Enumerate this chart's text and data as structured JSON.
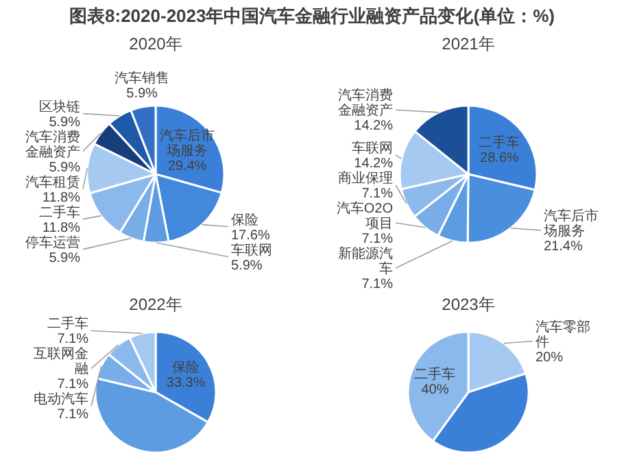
{
  "chart_data": [
    {
      "type": "other",
      "title": "图表8:2020-2023年中国汽车金融行业融资产品变化(单位：%)"
    },
    {
      "type": "pie",
      "title": "2020年",
      "categories": [
        "汽车后市场服务",
        "保险",
        "车联网",
        "停车运营",
        "二手车",
        "汽车租赁",
        "汽车消费金融资产",
        "区块链",
        "汽车销售"
      ],
      "values": [
        29.4,
        17.6,
        5.9,
        5.9,
        11.8,
        11.8,
        5.9,
        5.9,
        5.9
      ],
      "value_labels": [
        "29.4%",
        "17.6%",
        "5.9%",
        "5.9%",
        "11.8%",
        "11.8%",
        "5.9%",
        "5.9%",
        "5.9%"
      ],
      "colors": [
        "#3b80d8",
        "#4289dc",
        "#5e9ce2",
        "#78ade8",
        "#8cb9ec",
        "#a6c9f1",
        "#163f7a",
        "#1f5aa8",
        "#3170c4"
      ]
    },
    {
      "type": "pie",
      "title": "2021年",
      "categories": [
        "二手车",
        "汽车后市场服务",
        "新能源汽车",
        "汽车O2O项目",
        "商业保理",
        "车联网",
        "汽车消费金融资产"
      ],
      "values": [
        28.6,
        21.4,
        7.1,
        7.1,
        7.1,
        14.2,
        14.2
      ],
      "value_labels": [
        "28.6%",
        "21.4%",
        "7.1%",
        "7.1%",
        "7.1%",
        "14.2%",
        "14.2%"
      ],
      "colors": [
        "#3b80d8",
        "#4a8ede",
        "#5e9ce2",
        "#78ade8",
        "#8cb9ec",
        "#a6c9f1",
        "#1b4f98"
      ]
    },
    {
      "type": "pie",
      "title": "2022年",
      "categories": [
        "保险",
        null,
        "电动汽车",
        "互联网金融",
        "二手车"
      ],
      "values": [
        33.3,
        45.4,
        7.1,
        7.1,
        7.1
      ],
      "value_labels": [
        "33.3%",
        null,
        "7.1%",
        "7.1%",
        "7.1%"
      ],
      "colors": [
        "#3b80d8",
        "#5e9ce2",
        "#78ade8",
        "#8cb9ec",
        "#a6c9f1"
      ]
    },
    {
      "type": "pie",
      "title": "2023年",
      "categories": [
        "汽车零部件",
        null,
        "二手车"
      ],
      "values": [
        20,
        40,
        40
      ],
      "value_labels": [
        "20%",
        null,
        "40%"
      ],
      "colors": [
        "#a6c9f1",
        "#3b80d8",
        "#8cb9ec"
      ]
    }
  ]
}
